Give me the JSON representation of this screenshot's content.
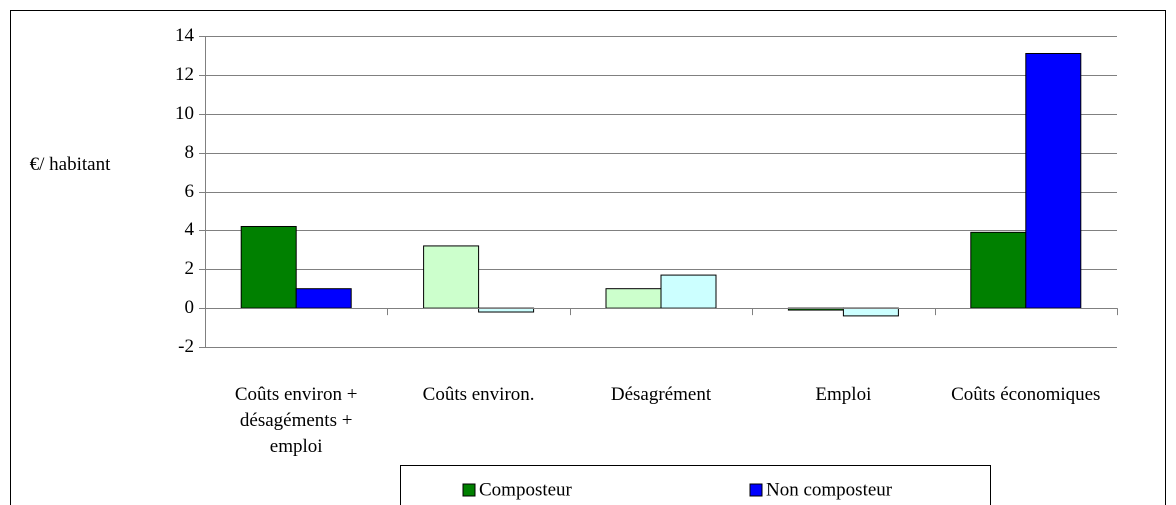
{
  "chart_data": {
    "type": "bar",
    "y_label": "€/ habitant",
    "categories": [
      "Coûts environ + désagéments + emploi",
      "Coûts environ.",
      "Désagrément",
      "Emploi",
      "Coûts économiques"
    ],
    "series": [
      {
        "name": "Composteur",
        "color": "#008000",
        "colors": [
          "#008000",
          "#ccffcc",
          "#ccffcc",
          "#008000",
          "#008000"
        ],
        "values": [
          4.2,
          3.2,
          1.0,
          -0.1,
          3.9
        ]
      },
      {
        "name": "Non composteur",
        "color": "#0000ff",
        "colors": [
          "#0000ff",
          "#ccffff",
          "#ccffff",
          "#ccffff",
          "#0000ff"
        ],
        "values": [
          1.0,
          -0.2,
          1.7,
          -0.4,
          13.1
        ]
      }
    ],
    "ylim": [
      -2,
      14
    ],
    "yticks": [
      -2,
      0,
      2,
      4,
      6,
      8,
      10,
      12,
      14
    ],
    "grid": true
  }
}
